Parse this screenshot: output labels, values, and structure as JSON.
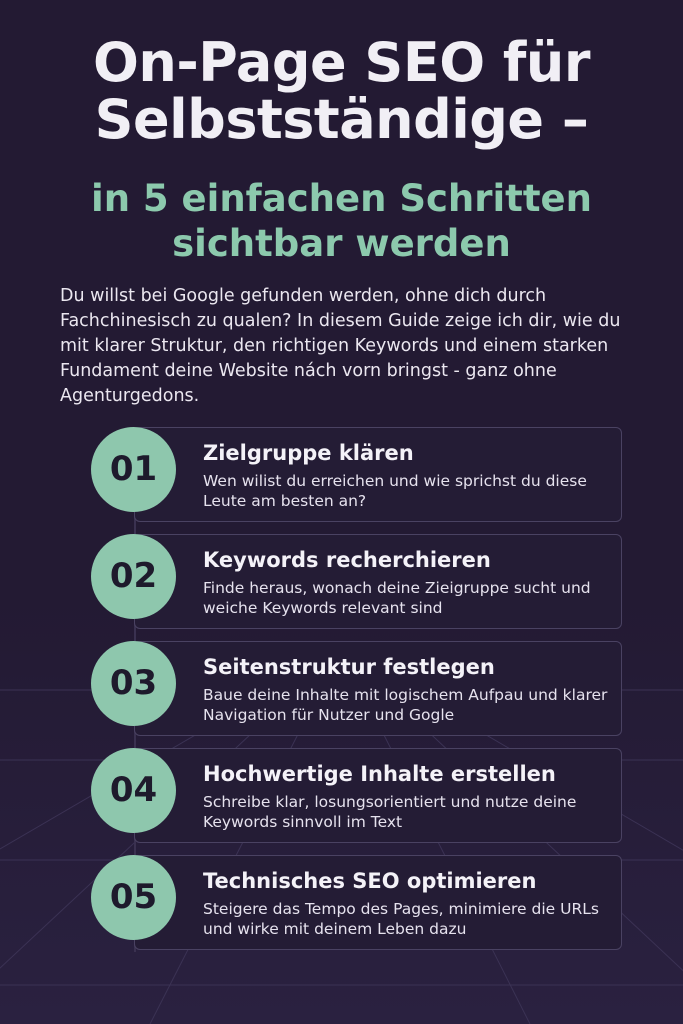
{
  "header": {
    "title": "On-Page SEO für Selbstständige –",
    "subtitle": "in 5 einfachen Schritten sichtbar werden"
  },
  "intro": "Du willst bei Google gefunden werden, ohne dich durch Fachchinesisch zu qualen? In diesem Guide zeige ich dir, wie du mit klarer Struktur, den richtigen Keywords und einem starken Fundament deine Website nách vorn bringst - ganz ohne Agenturgedons.",
  "steps": [
    {
      "number": "01",
      "title": "Zielgruppe klären",
      "description": "Wen wilist du erreichen und wie sprichst du diese Leute am besten an?"
    },
    {
      "number": "02",
      "title": "Keywords recherchieren",
      "description": "Finde heraus, wonach deine Zieigruppe sucht und weiche Keywords relevant sind"
    },
    {
      "number": "03",
      "title": "Seitenstruktur festlegen",
      "description": "Baue deine Inhalte mit logischem Aufpau und klarer Navigation für Nutzer und Gogle"
    },
    {
      "number": "04",
      "title": "Hochwertige Inhalte erstellen",
      "description": "Schreibe klar, losungsorientiert und nutze deine Keywords sinnvoll im Text"
    },
    {
      "number": "05",
      "title": "Technisches SEO optimieren",
      "description": "Steigere das Tempo des Pages, minimiere die URLs und wirke mit deinem Leben dazu"
    }
  ],
  "colors": {
    "background": "#231a33",
    "accent": "#8ec7ad",
    "title": "#f1eff5"
  }
}
